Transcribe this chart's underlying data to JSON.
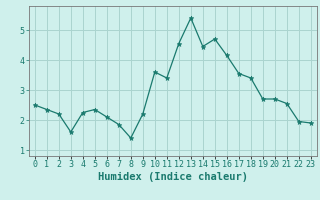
{
  "x": [
    0,
    1,
    2,
    3,
    4,
    5,
    6,
    7,
    8,
    9,
    10,
    11,
    12,
    13,
    14,
    15,
    16,
    17,
    18,
    19,
    20,
    21,
    22,
    23
  ],
  "y": [
    2.5,
    2.35,
    2.2,
    1.6,
    2.25,
    2.35,
    2.1,
    1.85,
    1.4,
    2.2,
    3.6,
    3.4,
    4.55,
    5.4,
    4.45,
    4.7,
    4.15,
    3.55,
    3.4,
    2.7,
    2.7,
    2.55,
    1.95,
    1.9
  ],
  "line_color": "#1a7a6e",
  "marker": "*",
  "marker_size": 3.5,
  "bg_color": "#cff0ec",
  "grid_color": "#aad4cf",
  "xlabel": "Humidex (Indice chaleur)",
  "xlabel_fontsize": 7.5,
  "tick_fontsize": 6.0,
  "ylim": [
    0.8,
    5.8
  ],
  "xlim": [
    -0.5,
    23.5
  ],
  "yticks": [
    1,
    2,
    3,
    4,
    5
  ],
  "xticks": [
    0,
    1,
    2,
    3,
    4,
    5,
    6,
    7,
    8,
    9,
    10,
    11,
    12,
    13,
    14,
    15,
    16,
    17,
    18,
    19,
    20,
    21,
    22,
    23
  ],
  "xtick_labels": [
    "0",
    "1",
    "2",
    "3",
    "4",
    "5",
    "6",
    "7",
    "8",
    "9",
    "10",
    "11",
    "12",
    "13",
    "14",
    "15",
    "16",
    "17",
    "18",
    "19",
    "20",
    "21",
    "22",
    "23"
  ]
}
